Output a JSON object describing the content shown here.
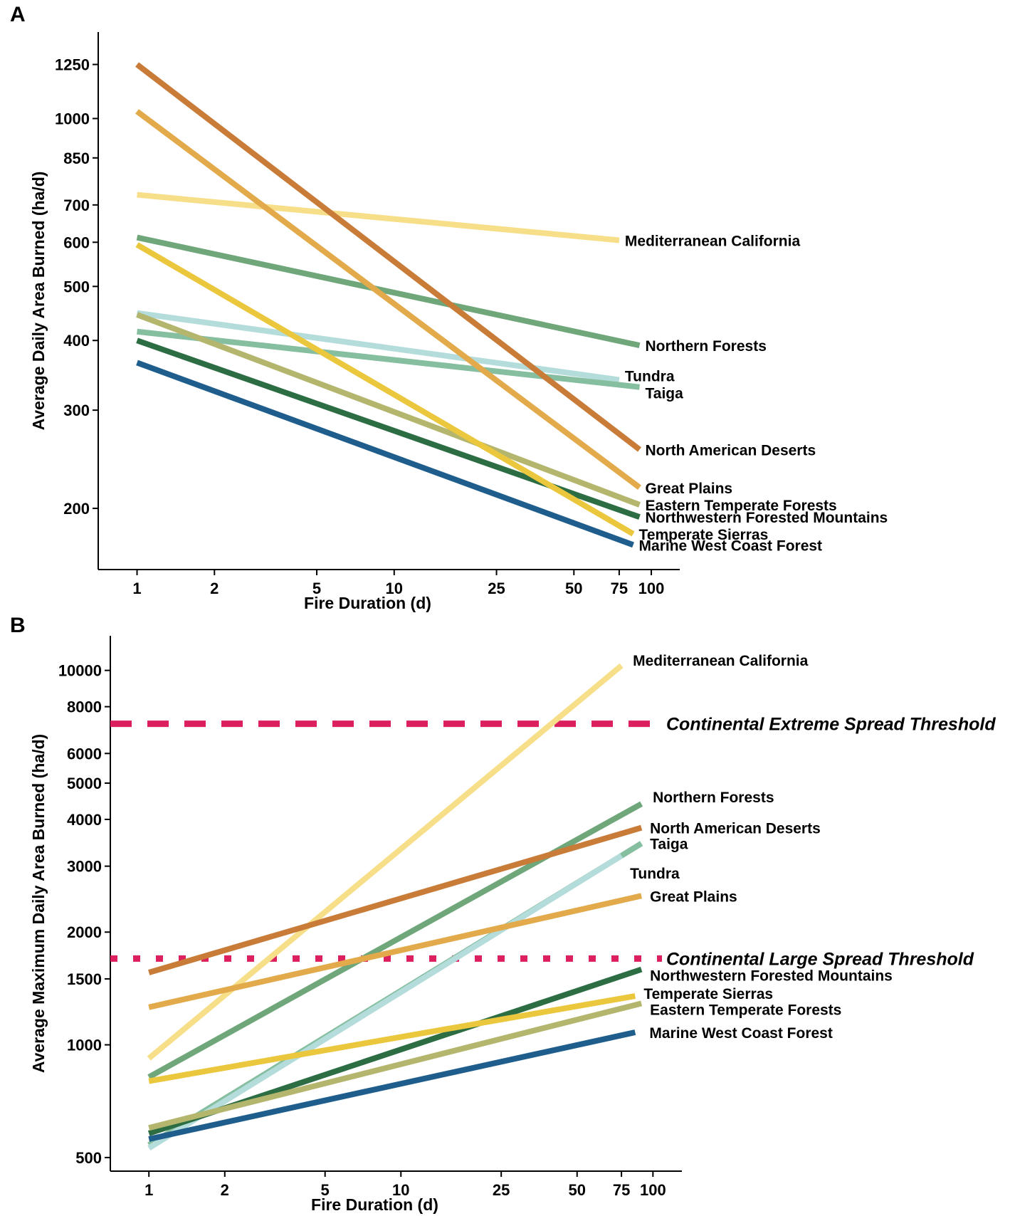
{
  "chart_data": [
    {
      "panel": "A",
      "type": "line",
      "xscale": "log",
      "yscale": "log",
      "xlabel": "Fire Duration (d)",
      "ylabel": "Average Daily Area Burned (ha/d)",
      "xlim": [
        0.9,
        110
      ],
      "ylim": [
        160,
        1400
      ],
      "xticks": [
        1,
        2,
        5,
        10,
        25,
        50,
        75,
        100
      ],
      "yticks": [
        200,
        300,
        400,
        500,
        600,
        700,
        850,
        1000,
        1250
      ],
      "series": [
        {
          "name": "Mediterranean California",
          "color": "#f7df8a",
          "x": [
            1,
            75
          ],
          "y": [
            730,
            605
          ]
        },
        {
          "name": "Northern Forests",
          "color": "#6fa77a",
          "x": [
            1,
            90
          ],
          "y": [
            612,
            392
          ]
        },
        {
          "name": "Tundra",
          "color": "#b4dcdb",
          "x": [
            1,
            75
          ],
          "y": [
            448,
            340
          ]
        },
        {
          "name": "Taiga",
          "color": "#86bea0",
          "x": [
            1,
            90
          ],
          "y": [
            415,
            330
          ]
        },
        {
          "name": "North American Deserts",
          "color": "#c97b38",
          "x": [
            1,
            90
          ],
          "y": [
            1250,
            255
          ]
        },
        {
          "name": "Great Plains",
          "color": "#e2aa4a",
          "x": [
            1,
            90
          ],
          "y": [
            1030,
            218
          ]
        },
        {
          "name": "Eastern Temperate Forests",
          "color": "#b5b66e",
          "x": [
            1,
            90
          ],
          "y": [
            445,
            203
          ]
        },
        {
          "name": "Northwestern Forested Mountains",
          "color": "#2d6d43",
          "x": [
            1,
            90
          ],
          "y": [
            400,
            193
          ]
        },
        {
          "name": "Temperate Sierras",
          "color": "#ebc73d",
          "x": [
            1,
            85
          ],
          "y": [
            594,
            180
          ]
        },
        {
          "name": "Marine West Coast Forest",
          "color": "#1f5e8c",
          "x": [
            1,
            85
          ],
          "y": [
            365,
            172
          ]
        }
      ]
    },
    {
      "panel": "B",
      "type": "line",
      "xscale": "log",
      "yscale": "log",
      "xlabel": "Fire Duration (d)",
      "ylabel": "Average Maximum Daily Area Burned (ha/d)",
      "xlim": [
        0.9,
        110
      ],
      "ylim": [
        470,
        12000
      ],
      "xticks": [
        1,
        2,
        5,
        10,
        25,
        50,
        75,
        100
      ],
      "yticks": [
        500,
        1000,
        1500,
        2000,
        3000,
        4000,
        5000,
        6000,
        8000,
        10000
      ],
      "thresholds": [
        {
          "name": "Continental Extreme Spread Threshold",
          "y": 7200,
          "style": "dashed",
          "color": "#dc1f5d"
        },
        {
          "name": "Continental Large Spread Threshold",
          "y": 1700,
          "style": "dotted",
          "color": "#dc1f5d"
        }
      ],
      "series": [
        {
          "name": "Mediterranean California",
          "color": "#f7df8a",
          "x": [
            1,
            75
          ],
          "y": [
            920,
            10300
          ]
        },
        {
          "name": "Northern Forests",
          "color": "#6fa77a",
          "x": [
            1,
            90
          ],
          "y": [
            820,
            4400
          ]
        },
        {
          "name": "North American Deserts",
          "color": "#c97b38",
          "x": [
            1,
            90
          ],
          "y": [
            1560,
            3800
          ]
        },
        {
          "name": "Taiga",
          "color": "#86bea0",
          "x": [
            1,
            90
          ],
          "y": [
            540,
            3450
          ]
        },
        {
          "name": "Tundra",
          "color": "#b4dcdb",
          "x": [
            1,
            75
          ],
          "y": [
            530,
            3200
          ]
        },
        {
          "name": "Great Plains",
          "color": "#e2aa4a",
          "x": [
            1,
            90
          ],
          "y": [
            1260,
            2500
          ]
        },
        {
          "name": "Northwestern Forested Mountains",
          "color": "#2d6d43",
          "x": [
            1,
            90
          ],
          "y": [
            580,
            1590
          ]
        },
        {
          "name": "Temperate Sierras",
          "color": "#ebc73d",
          "x": [
            1,
            85
          ],
          "y": [
            800,
            1350
          ]
        },
        {
          "name": "Eastern Temperate Forests",
          "color": "#b5b66e",
          "x": [
            1,
            90
          ],
          "y": [
            600,
            1290
          ]
        },
        {
          "name": "Marine West Coast Forest",
          "color": "#1f5e8c",
          "x": [
            1,
            85
          ],
          "y": [
            560,
            1080
          ]
        }
      ]
    }
  ]
}
